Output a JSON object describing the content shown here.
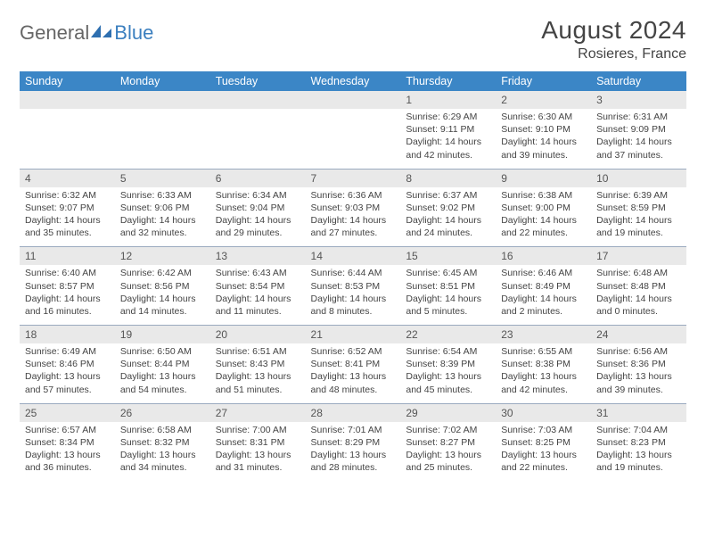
{
  "logo": {
    "part1": "General",
    "part2": "Blue"
  },
  "title": "August 2024",
  "location": "Rosieres, France",
  "colors": {
    "header_bg": "#3b86c6",
    "header_fg": "#ffffff",
    "num_bg": "#e9e9e9",
    "divider": "#9aaabf",
    "text": "#444444"
  },
  "day_names": [
    "Sunday",
    "Monday",
    "Tuesday",
    "Wednesday",
    "Thursday",
    "Friday",
    "Saturday"
  ],
  "weeks": [
    {
      "nums": [
        "",
        "",
        "",
        "",
        "1",
        "2",
        "3"
      ],
      "cells": [
        null,
        null,
        null,
        null,
        {
          "sunrise": "Sunrise: 6:29 AM",
          "sunset": "Sunset: 9:11 PM",
          "day1": "Daylight: 14 hours",
          "day2": "and 42 minutes."
        },
        {
          "sunrise": "Sunrise: 6:30 AM",
          "sunset": "Sunset: 9:10 PM",
          "day1": "Daylight: 14 hours",
          "day2": "and 39 minutes."
        },
        {
          "sunrise": "Sunrise: 6:31 AM",
          "sunset": "Sunset: 9:09 PM",
          "day1": "Daylight: 14 hours",
          "day2": "and 37 minutes."
        }
      ]
    },
    {
      "nums": [
        "4",
        "5",
        "6",
        "7",
        "8",
        "9",
        "10"
      ],
      "cells": [
        {
          "sunrise": "Sunrise: 6:32 AM",
          "sunset": "Sunset: 9:07 PM",
          "day1": "Daylight: 14 hours",
          "day2": "and 35 minutes."
        },
        {
          "sunrise": "Sunrise: 6:33 AM",
          "sunset": "Sunset: 9:06 PM",
          "day1": "Daylight: 14 hours",
          "day2": "and 32 minutes."
        },
        {
          "sunrise": "Sunrise: 6:34 AM",
          "sunset": "Sunset: 9:04 PM",
          "day1": "Daylight: 14 hours",
          "day2": "and 29 minutes."
        },
        {
          "sunrise": "Sunrise: 6:36 AM",
          "sunset": "Sunset: 9:03 PM",
          "day1": "Daylight: 14 hours",
          "day2": "and 27 minutes."
        },
        {
          "sunrise": "Sunrise: 6:37 AM",
          "sunset": "Sunset: 9:02 PM",
          "day1": "Daylight: 14 hours",
          "day2": "and 24 minutes."
        },
        {
          "sunrise": "Sunrise: 6:38 AM",
          "sunset": "Sunset: 9:00 PM",
          "day1": "Daylight: 14 hours",
          "day2": "and 22 minutes."
        },
        {
          "sunrise": "Sunrise: 6:39 AM",
          "sunset": "Sunset: 8:59 PM",
          "day1": "Daylight: 14 hours",
          "day2": "and 19 minutes."
        }
      ]
    },
    {
      "nums": [
        "11",
        "12",
        "13",
        "14",
        "15",
        "16",
        "17"
      ],
      "cells": [
        {
          "sunrise": "Sunrise: 6:40 AM",
          "sunset": "Sunset: 8:57 PM",
          "day1": "Daylight: 14 hours",
          "day2": "and 16 minutes."
        },
        {
          "sunrise": "Sunrise: 6:42 AM",
          "sunset": "Sunset: 8:56 PM",
          "day1": "Daylight: 14 hours",
          "day2": "and 14 minutes."
        },
        {
          "sunrise": "Sunrise: 6:43 AM",
          "sunset": "Sunset: 8:54 PM",
          "day1": "Daylight: 14 hours",
          "day2": "and 11 minutes."
        },
        {
          "sunrise": "Sunrise: 6:44 AM",
          "sunset": "Sunset: 8:53 PM",
          "day1": "Daylight: 14 hours",
          "day2": "and 8 minutes."
        },
        {
          "sunrise": "Sunrise: 6:45 AM",
          "sunset": "Sunset: 8:51 PM",
          "day1": "Daylight: 14 hours",
          "day2": "and 5 minutes."
        },
        {
          "sunrise": "Sunrise: 6:46 AM",
          "sunset": "Sunset: 8:49 PM",
          "day1": "Daylight: 14 hours",
          "day2": "and 2 minutes."
        },
        {
          "sunrise": "Sunrise: 6:48 AM",
          "sunset": "Sunset: 8:48 PM",
          "day1": "Daylight: 14 hours",
          "day2": "and 0 minutes."
        }
      ]
    },
    {
      "nums": [
        "18",
        "19",
        "20",
        "21",
        "22",
        "23",
        "24"
      ],
      "cells": [
        {
          "sunrise": "Sunrise: 6:49 AM",
          "sunset": "Sunset: 8:46 PM",
          "day1": "Daylight: 13 hours",
          "day2": "and 57 minutes."
        },
        {
          "sunrise": "Sunrise: 6:50 AM",
          "sunset": "Sunset: 8:44 PM",
          "day1": "Daylight: 13 hours",
          "day2": "and 54 minutes."
        },
        {
          "sunrise": "Sunrise: 6:51 AM",
          "sunset": "Sunset: 8:43 PM",
          "day1": "Daylight: 13 hours",
          "day2": "and 51 minutes."
        },
        {
          "sunrise": "Sunrise: 6:52 AM",
          "sunset": "Sunset: 8:41 PM",
          "day1": "Daylight: 13 hours",
          "day2": "and 48 minutes."
        },
        {
          "sunrise": "Sunrise: 6:54 AM",
          "sunset": "Sunset: 8:39 PM",
          "day1": "Daylight: 13 hours",
          "day2": "and 45 minutes."
        },
        {
          "sunrise": "Sunrise: 6:55 AM",
          "sunset": "Sunset: 8:38 PM",
          "day1": "Daylight: 13 hours",
          "day2": "and 42 minutes."
        },
        {
          "sunrise": "Sunrise: 6:56 AM",
          "sunset": "Sunset: 8:36 PM",
          "day1": "Daylight: 13 hours",
          "day2": "and 39 minutes."
        }
      ]
    },
    {
      "nums": [
        "25",
        "26",
        "27",
        "28",
        "29",
        "30",
        "31"
      ],
      "cells": [
        {
          "sunrise": "Sunrise: 6:57 AM",
          "sunset": "Sunset: 8:34 PM",
          "day1": "Daylight: 13 hours",
          "day2": "and 36 minutes."
        },
        {
          "sunrise": "Sunrise: 6:58 AM",
          "sunset": "Sunset: 8:32 PM",
          "day1": "Daylight: 13 hours",
          "day2": "and 34 minutes."
        },
        {
          "sunrise": "Sunrise: 7:00 AM",
          "sunset": "Sunset: 8:31 PM",
          "day1": "Daylight: 13 hours",
          "day2": "and 31 minutes."
        },
        {
          "sunrise": "Sunrise: 7:01 AM",
          "sunset": "Sunset: 8:29 PM",
          "day1": "Daylight: 13 hours",
          "day2": "and 28 minutes."
        },
        {
          "sunrise": "Sunrise: 7:02 AM",
          "sunset": "Sunset: 8:27 PM",
          "day1": "Daylight: 13 hours",
          "day2": "and 25 minutes."
        },
        {
          "sunrise": "Sunrise: 7:03 AM",
          "sunset": "Sunset: 8:25 PM",
          "day1": "Daylight: 13 hours",
          "day2": "and 22 minutes."
        },
        {
          "sunrise": "Sunrise: 7:04 AM",
          "sunset": "Sunset: 8:23 PM",
          "day1": "Daylight: 13 hours",
          "day2": "and 19 minutes."
        }
      ]
    }
  ]
}
